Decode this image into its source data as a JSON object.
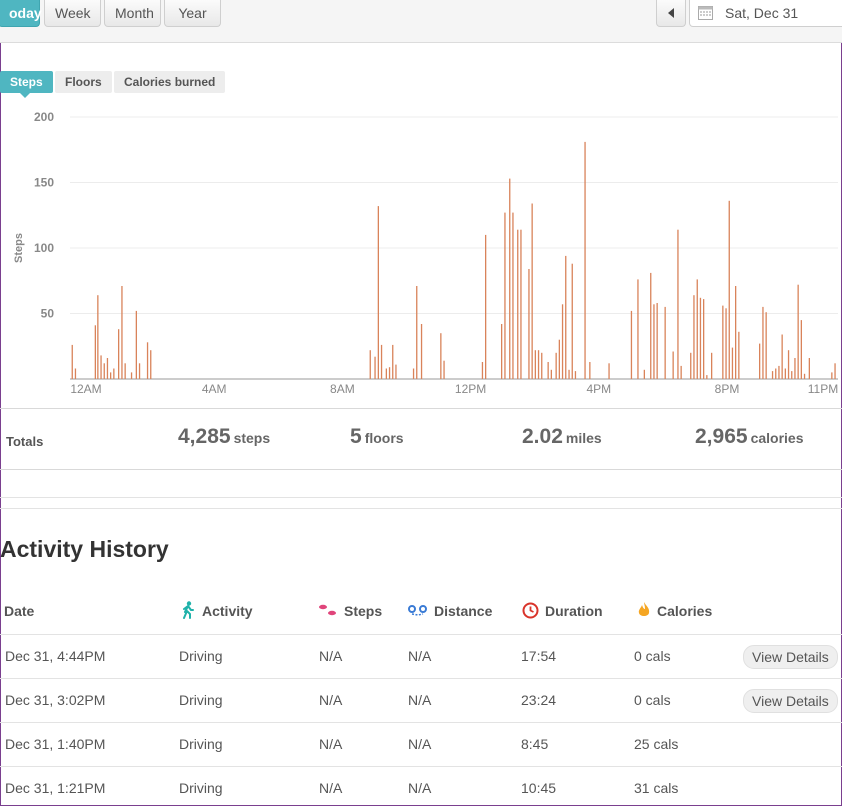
{
  "range_tabs": [
    {
      "label": "oday",
      "active": true
    },
    {
      "label": "Week",
      "active": false
    },
    {
      "label": "Month",
      "active": false
    },
    {
      "label": "Year",
      "active": false
    }
  ],
  "date_picker": {
    "value": "Sat, Dec 31"
  },
  "metric_tabs": [
    {
      "label": "Steps",
      "active": true
    },
    {
      "label": "Floors",
      "active": false
    },
    {
      "label": "Calories burned",
      "active": false
    }
  ],
  "chart_data": {
    "type": "bar",
    "ylabel": "Steps",
    "ylim": [
      0,
      200
    ],
    "yticks": [
      50,
      100,
      150,
      200
    ],
    "xticks": [
      {
        "label": "12AM",
        "hour": 0
      },
      {
        "label": "4AM",
        "hour": 4
      },
      {
        "label": "8AM",
        "hour": 8
      },
      {
        "label": "12PM",
        "hour": 12
      },
      {
        "label": "4PM",
        "hour": 16
      },
      {
        "label": "8PM",
        "hour": 20
      },
      {
        "label": "11PM",
        "hour": 23
      }
    ],
    "bar_color": "#d9835a",
    "points": [
      [
        -0.45,
        26
      ],
      [
        -0.35,
        8
      ],
      [
        0.27,
        41
      ],
      [
        0.35,
        64
      ],
      [
        0.45,
        18
      ],
      [
        0.55,
        12
      ],
      [
        0.65,
        16
      ],
      [
        0.75,
        5
      ],
      [
        0.85,
        8
      ],
      [
        1.0,
        38
      ],
      [
        1.1,
        71
      ],
      [
        1.2,
        12
      ],
      [
        1.4,
        5
      ],
      [
        1.55,
        52
      ],
      [
        1.65,
        12
      ],
      [
        1.9,
        28
      ],
      [
        2.0,
        22
      ],
      [
        8.85,
        22
      ],
      [
        9.0,
        17
      ],
      [
        9.1,
        132
      ],
      [
        9.2,
        26
      ],
      [
        9.35,
        8
      ],
      [
        9.45,
        9
      ],
      [
        9.55,
        26
      ],
      [
        9.65,
        11
      ],
      [
        10.2,
        8
      ],
      [
        10.3,
        71
      ],
      [
        10.45,
        42
      ],
      [
        11.05,
        35
      ],
      [
        11.15,
        14
      ],
      [
        12.35,
        13
      ],
      [
        12.45,
        110
      ],
      [
        12.95,
        42
      ],
      [
        13.05,
        127
      ],
      [
        13.2,
        153
      ],
      [
        13.3,
        127
      ],
      [
        13.45,
        114
      ],
      [
        13.55,
        114
      ],
      [
        13.8,
        84
      ],
      [
        13.9,
        134
      ],
      [
        14.0,
        22
      ],
      [
        14.1,
        22
      ],
      [
        14.2,
        20
      ],
      [
        14.4,
        13
      ],
      [
        14.5,
        7
      ],
      [
        14.65,
        20
      ],
      [
        14.75,
        30
      ],
      [
        14.85,
        57
      ],
      [
        14.95,
        94
      ],
      [
        15.05,
        7
      ],
      [
        15.15,
        88
      ],
      [
        15.25,
        6
      ],
      [
        15.55,
        181
      ],
      [
        15.7,
        13
      ],
      [
        16.3,
        12
      ],
      [
        17.0,
        52
      ],
      [
        17.2,
        76
      ],
      [
        17.4,
        7
      ],
      [
        17.6,
        81
      ],
      [
        17.7,
        57
      ],
      [
        17.8,
        58
      ],
      [
        18.05,
        55
      ],
      [
        18.3,
        21
      ],
      [
        18.45,
        114
      ],
      [
        18.55,
        10
      ],
      [
        18.85,
        20
      ],
      [
        18.95,
        64
      ],
      [
        19.05,
        76
      ],
      [
        19.15,
        62
      ],
      [
        19.25,
        61
      ],
      [
        19.35,
        3
      ],
      [
        19.5,
        20
      ],
      [
        19.85,
        56
      ],
      [
        19.95,
        54
      ],
      [
        20.05,
        136
      ],
      [
        20.15,
        24
      ],
      [
        20.25,
        71
      ],
      [
        20.35,
        36
      ],
      [
        21.0,
        27
      ],
      [
        21.1,
        55
      ],
      [
        21.2,
        51
      ],
      [
        21.4,
        6
      ],
      [
        21.5,
        8
      ],
      [
        21.6,
        10
      ],
      [
        21.7,
        34
      ],
      [
        21.8,
        8
      ],
      [
        21.9,
        22
      ],
      [
        22.0,
        6
      ],
      [
        22.1,
        16
      ],
      [
        22.2,
        72
      ],
      [
        22.3,
        45
      ],
      [
        22.4,
        4
      ],
      [
        22.55,
        16
      ],
      [
        23.25,
        5
      ],
      [
        23.35,
        12
      ],
      [
        23.5,
        4
      ],
      [
        23.65,
        22
      ],
      [
        23.75,
        33
      ],
      [
        23.85,
        17
      ],
      [
        23.95,
        30
      ],
      [
        24.35,
        22
      ]
    ]
  },
  "totals": {
    "label": "Totals",
    "steps": {
      "value": "4,285",
      "unit": "steps"
    },
    "floors": {
      "value": "5",
      "unit": "floors"
    },
    "miles": {
      "value": "2.02",
      "unit": "miles"
    },
    "calories": {
      "value": "2,965",
      "unit": "calories"
    }
  },
  "activity_history": {
    "title": "Activity History",
    "columns": {
      "date": "Date",
      "activity": "Activity",
      "steps": "Steps",
      "distance": "Distance",
      "duration": "Duration",
      "calories": "Calories"
    },
    "icon_colors": {
      "activity": "#20b2aa",
      "steps": "#e0457b",
      "distance": "#3a7bd5",
      "duration": "#d9342b",
      "calories": "#f5a623"
    },
    "rows": [
      {
        "date": "Dec 31, 4:44PM",
        "activity": "Driving",
        "steps": "N/A",
        "distance": "N/A",
        "duration": "17:54",
        "calories": "0 cals",
        "action": "View Details"
      },
      {
        "date": "Dec 31, 3:02PM",
        "activity": "Driving",
        "steps": "N/A",
        "distance": "N/A",
        "duration": "23:24",
        "calories": "0 cals",
        "action": "View Details"
      },
      {
        "date": "Dec 31, 1:40PM",
        "activity": "Driving",
        "steps": "N/A",
        "distance": "N/A",
        "duration": "8:45",
        "calories": "25 cals",
        "action": ""
      },
      {
        "date": "Dec 31, 1:21PM",
        "activity": "Driving",
        "steps": "N/A",
        "distance": "N/A",
        "duration": "10:45",
        "calories": "31 cals",
        "action": ""
      }
    ]
  }
}
